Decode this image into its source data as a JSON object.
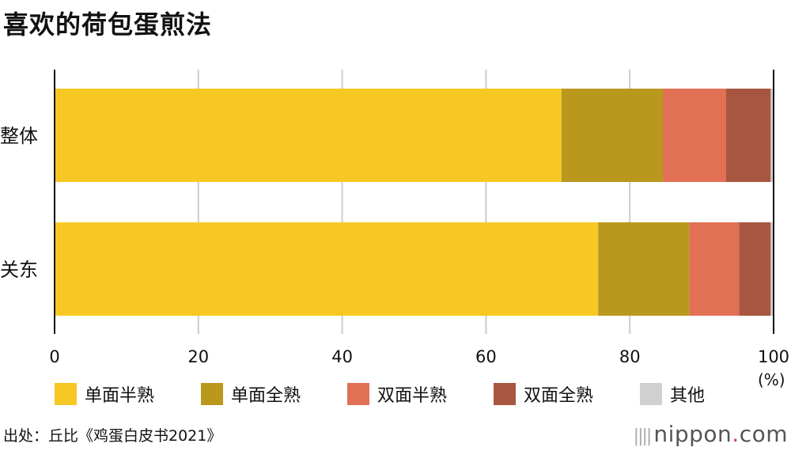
{
  "title": "喜欢的荷包蛋煎法",
  "source": "出处：丘比《鸡蛋白皮书2021》",
  "logo": {
    "text": "nippon",
    "dot": ".",
    "suffix": "com"
  },
  "chart_data": {
    "type": "bar",
    "orientation": "horizontal",
    "stacked": true,
    "title": "喜欢的荷包蛋煎法",
    "categories": [
      "整体",
      "关东"
    ],
    "series": [
      {
        "name": "单面半熟",
        "color": "#f7c824",
        "values": [
          70.5,
          75.6
        ]
      },
      {
        "name": "单面全熟",
        "color": "#ba981d",
        "values": [
          14.1,
          12.7
        ]
      },
      {
        "name": "双面半熟",
        "color": "#e27055",
        "values": [
          8.8,
          6.9
        ]
      },
      {
        "name": "双面全熟",
        "color": "#a85640",
        "values": [
          6.2,
          4.4
        ]
      },
      {
        "name": "其他",
        "color": "#d0d0d0",
        "values": [
          0.4,
          0.4
        ]
      }
    ],
    "xlim": [
      0,
      100
    ],
    "xticks": [
      "0",
      "20",
      "40",
      "60",
      "80",
      "100"
    ],
    "xunit": "(%)",
    "grid": true,
    "legend": "bottom"
  }
}
